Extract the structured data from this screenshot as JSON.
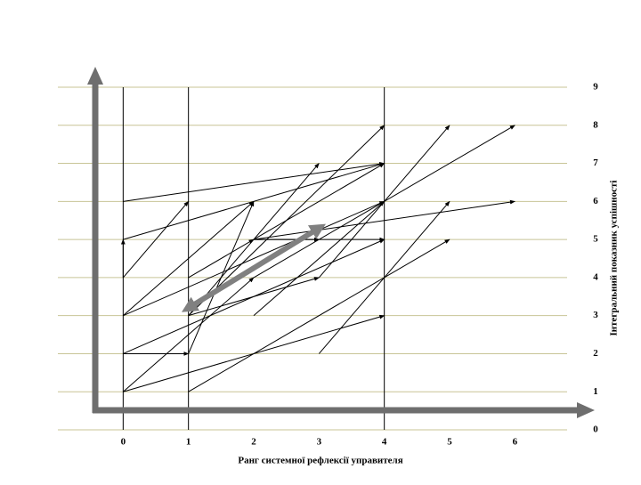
{
  "chart_data": {
    "type": "arrow",
    "xlabel": "Ранг системної рефлексії управителя",
    "ylabel": "Інтегральний показник успішності",
    "xlim": [
      -1,
      6.8
    ],
    "ylim": [
      0,
      9
    ],
    "xticks": [
      0,
      1,
      2,
      3,
      4,
      5,
      6
    ],
    "yticks": [
      0,
      1,
      2,
      3,
      4,
      5,
      6,
      7,
      8,
      9
    ],
    "vlines": [
      0,
      1,
      4
    ],
    "grid": true,
    "grid_color": "#c8c496",
    "arrow_color": "#000000",
    "trend_color": "#808080",
    "arrows": [
      {
        "from": [
          0,
          6
        ],
        "to": [
          4,
          7
        ]
      },
      {
        "from": [
          0,
          5
        ],
        "to": [
          4,
          7
        ]
      },
      {
        "from": [
          0,
          4
        ],
        "to": [
          0,
          5
        ]
      },
      {
        "from": [
          0,
          4
        ],
        "to": [
          1,
          6
        ]
      },
      {
        "from": [
          0,
          3
        ],
        "to": [
          2,
          6
        ]
      },
      {
        "from": [
          0,
          3
        ],
        "to": [
          4,
          6
        ]
      },
      {
        "from": [
          0,
          2
        ],
        "to": [
          1,
          2
        ]
      },
      {
        "from": [
          0,
          2
        ],
        "to": [
          4,
          5
        ]
      },
      {
        "from": [
          0,
          1
        ],
        "to": [
          2,
          4
        ]
      },
      {
        "from": [
          0,
          1
        ],
        "to": [
          4,
          3
        ]
      },
      {
        "from": [
          1,
          1
        ],
        "to": [
          5,
          5
        ]
      },
      {
        "from": [
          1,
          3
        ],
        "to": [
          3,
          7
        ]
      },
      {
        "from": [
          1,
          3
        ],
        "to": [
          4,
          8
        ]
      },
      {
        "from": [
          1,
          4
        ],
        "to": [
          2,
          5
        ]
      },
      {
        "from": [
          1,
          3
        ],
        "to": [
          3,
          4
        ]
      },
      {
        "from": [
          1,
          2
        ],
        "to": [
          2,
          6
        ]
      },
      {
        "from": [
          2,
          3
        ],
        "to": [
          4,
          6
        ]
      },
      {
        "from": [
          2,
          5
        ],
        "to": [
          3,
          5
        ]
      },
      {
        "from": [
          2,
          5
        ],
        "to": [
          4,
          5
        ]
      },
      {
        "from": [
          2,
          5
        ],
        "to": [
          6,
          6
        ]
      },
      {
        "from": [
          2,
          5
        ],
        "to": [
          4,
          7
        ]
      },
      {
        "from": [
          3,
          4
        ],
        "to": [
          5,
          8
        ]
      },
      {
        "from": [
          3,
          2
        ],
        "to": [
          5,
          6
        ]
      },
      {
        "from": [
          2,
          4
        ],
        "to": [
          6,
          8
        ]
      }
    ],
    "trend": {
      "from": [
        1,
        3.2
      ],
      "to": [
        3,
        5.3
      ]
    }
  }
}
